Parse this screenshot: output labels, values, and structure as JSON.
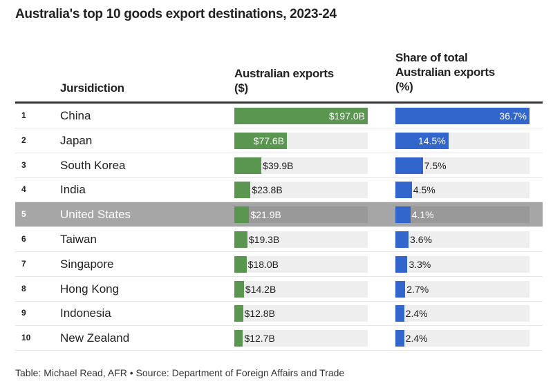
{
  "title": "Australia's top 10 goods export destinations, 2023-24",
  "headers": {
    "jurisdiction": "Jursidiction",
    "exports_line1": "Australian exports",
    "exports_line2": "($)",
    "share_line1": "Share of total",
    "share_line2": "Australian exports",
    "share_line3": "(%)"
  },
  "colors": {
    "exports_bar": "#5a9650",
    "share_bar": "#3366cc",
    "highlight_row": "#a6a6a6",
    "track": "#eeeeee"
  },
  "chart_data": {
    "type": "table",
    "highlighted_rank": 5,
    "exports_max": 197.0,
    "share_max": 36.7,
    "rows": [
      {
        "rank": "1",
        "name": "China",
        "exports": 197.0,
        "exports_label": "$197.0B",
        "share": 36.7,
        "share_label": "36.7%"
      },
      {
        "rank": "2",
        "name": "Japan",
        "exports": 77.6,
        "exports_label": "$77.6B",
        "share": 14.5,
        "share_label": "14.5%"
      },
      {
        "rank": "3",
        "name": "South Korea",
        "exports": 39.9,
        "exports_label": "$39.9B",
        "share": 7.5,
        "share_label": "7.5%"
      },
      {
        "rank": "4",
        "name": "India",
        "exports": 23.8,
        "exports_label": "$23.8B",
        "share": 4.5,
        "share_label": "4.5%"
      },
      {
        "rank": "5",
        "name": "United States",
        "exports": 21.9,
        "exports_label": "$21.9B",
        "share": 4.1,
        "share_label": "4.1%"
      },
      {
        "rank": "6",
        "name": "Taiwan",
        "exports": 19.3,
        "exports_label": "$19.3B",
        "share": 3.6,
        "share_label": "3.6%"
      },
      {
        "rank": "7",
        "name": "Singapore",
        "exports": 18.0,
        "exports_label": "$18.0B",
        "share": 3.3,
        "share_label": "3.3%"
      },
      {
        "rank": "8",
        "name": "Hong Kong",
        "exports": 14.2,
        "exports_label": "$14.2B",
        "share": 2.7,
        "share_label": "2.7%"
      },
      {
        "rank": "9",
        "name": "Indonesia",
        "exports": 12.8,
        "exports_label": "$12.8B",
        "share": 2.4,
        "share_label": "2.4%"
      },
      {
        "rank": "10",
        "name": "New Zealand",
        "exports": 12.7,
        "exports_label": "$12.7B",
        "share": 2.4,
        "share_label": "2.4%"
      }
    ]
  },
  "footer": "Table: Michael Read, AFR • Source: Department of Foreign Affairs and Trade"
}
